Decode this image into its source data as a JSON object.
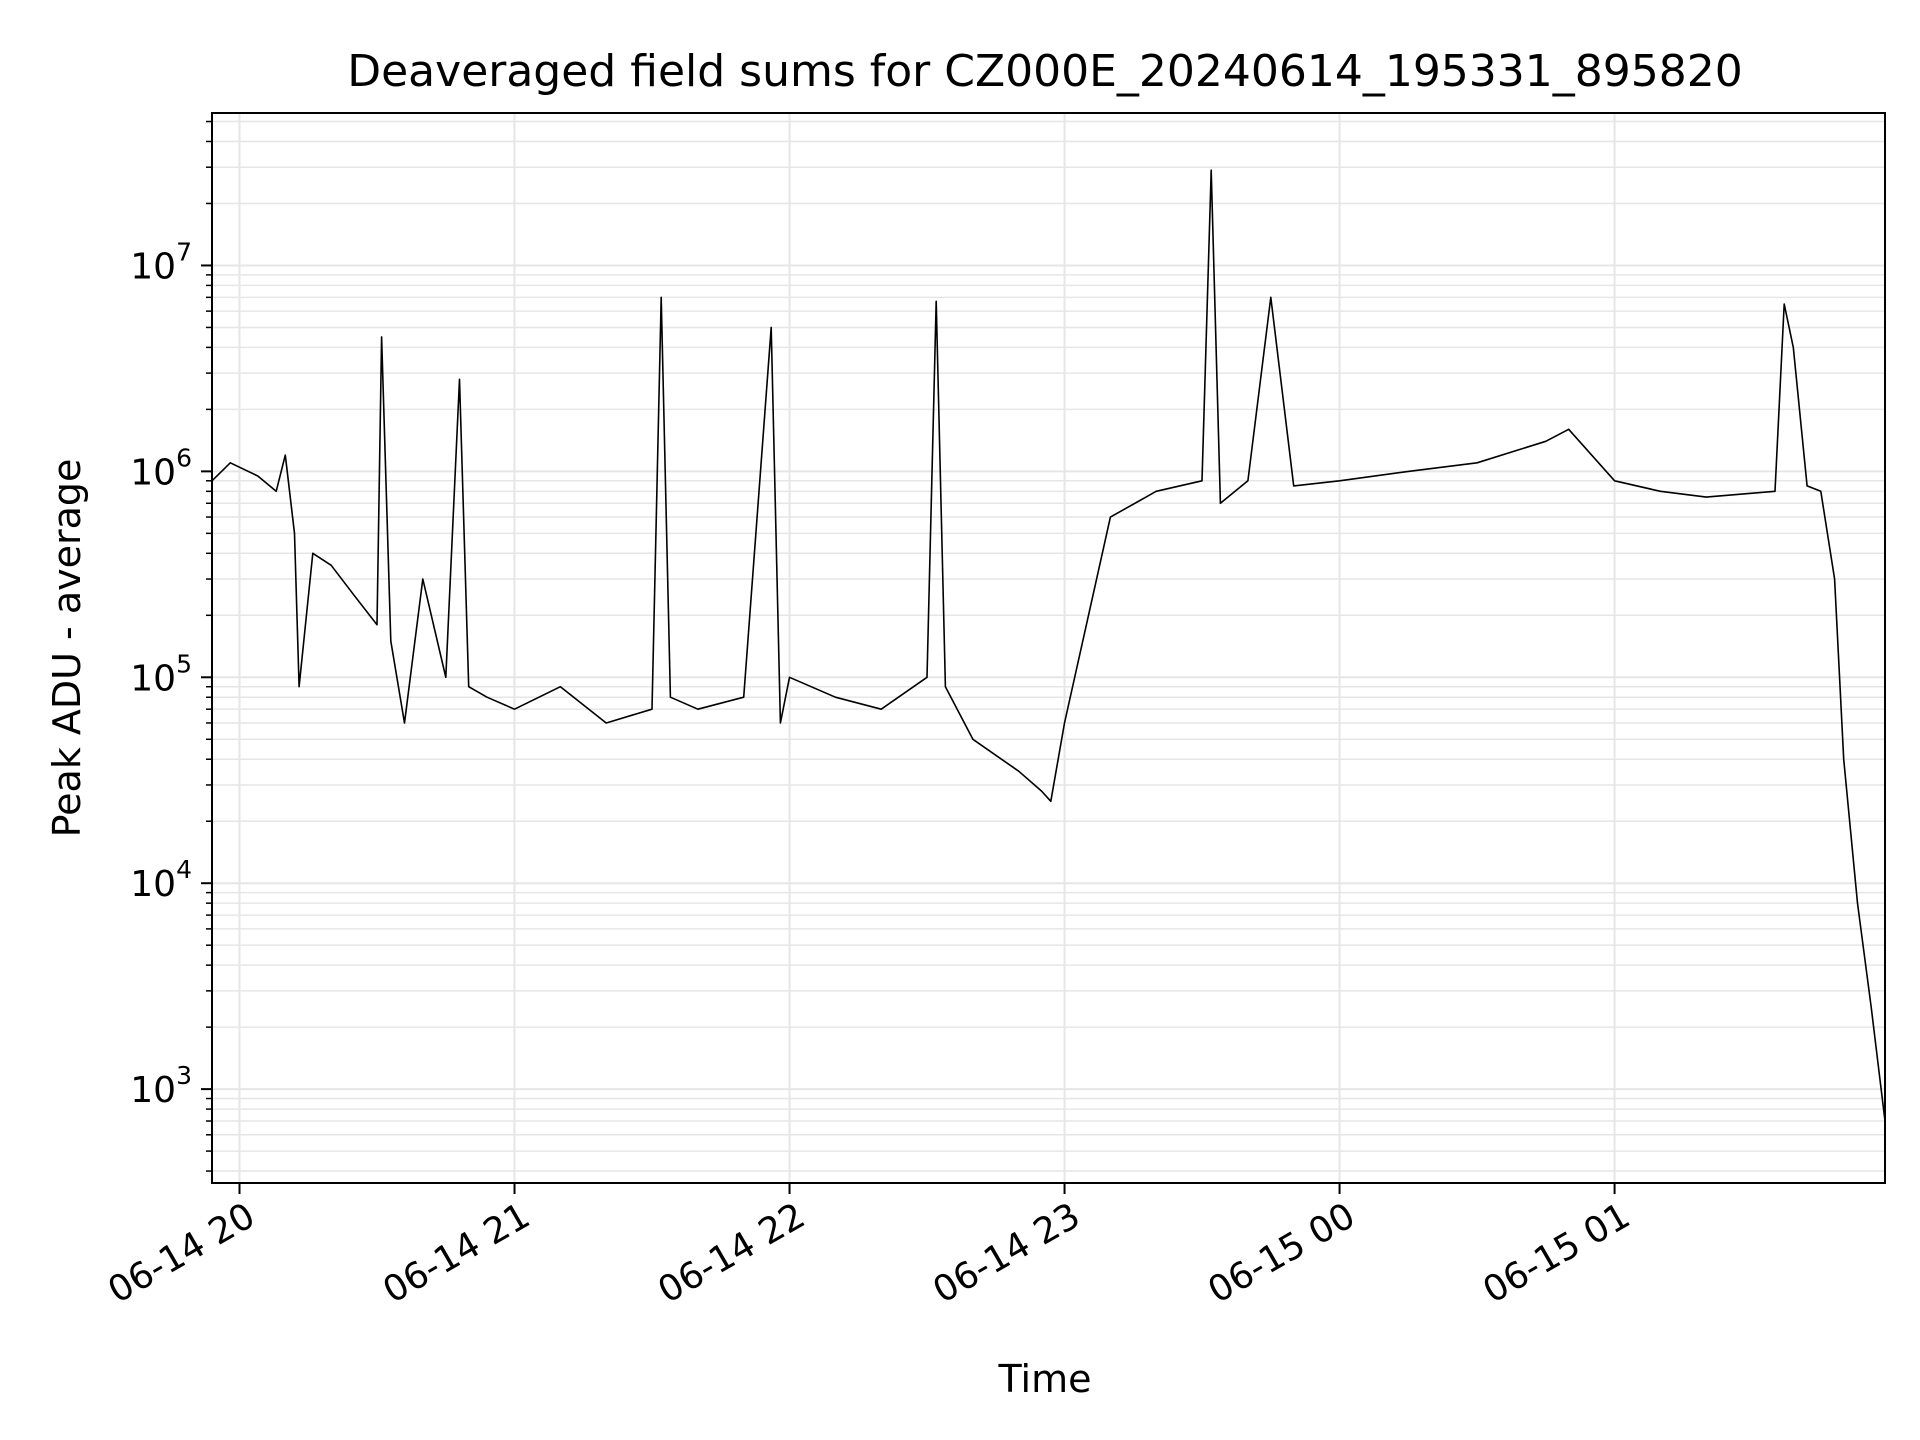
{
  "chart_data": {
    "type": "line",
    "title": "Deaveraged field sums for CZ000E_20240614_195331_895820",
    "xlabel": "Time",
    "ylabel": "Peak ADU - average",
    "yscale": "log",
    "ylim": [
      350,
      55000000
    ],
    "xlim": [
      "06-14 19:54",
      "06-15 01:59"
    ],
    "grid": true,
    "line_color": "#000000",
    "grid_color": "#e6e6e6",
    "xticks": [
      {
        "label": "06-14 20",
        "t": "06-14 20:00"
      },
      {
        "label": "06-14 21",
        "t": "06-14 21:00"
      },
      {
        "label": "06-14 22",
        "t": "06-14 22:00"
      },
      {
        "label": "06-14 23",
        "t": "06-14 23:00"
      },
      {
        "label": "06-15 00",
        "t": "06-15 00:00"
      },
      {
        "label": "06-15 01",
        "t": "06-15 01:00"
      }
    ],
    "yticks": [
      {
        "base": "10",
        "exp": "3",
        "value": 1000
      },
      {
        "base": "10",
        "exp": "4",
        "value": 10000
      },
      {
        "base": "10",
        "exp": "5",
        "value": 100000
      },
      {
        "base": "10",
        "exp": "6",
        "value": 1000000
      },
      {
        "base": "10",
        "exp": "7",
        "value": 10000000
      }
    ],
    "series": [
      {
        "x": [
          "06-14 19:54",
          "06-14 19:58",
          "06-14 20:04",
          "06-14 20:08",
          "06-14 20:10",
          "06-14 20:12",
          "06-14 20:13",
          "06-14 20:16",
          "06-14 20:20",
          "06-14 20:25",
          "06-14 20:30",
          "06-14 20:31",
          "06-14 20:33",
          "06-14 20:36",
          "06-14 20:40",
          "06-14 20:45",
          "06-14 20:48",
          "06-14 20:50",
          "06-14 20:54",
          "06-14 21:00",
          "06-14 21:10",
          "06-14 21:20",
          "06-14 21:30",
          "06-14 21:32",
          "06-14 21:34",
          "06-14 21:40",
          "06-14 21:50",
          "06-14 21:56",
          "06-14 21:58",
          "06-14 22:00",
          "06-14 22:10",
          "06-14 22:20",
          "06-14 22:30",
          "06-14 22:32",
          "06-14 22:34",
          "06-14 22:40",
          "06-14 22:50",
          "06-14 22:55",
          "06-14 22:57",
          "06-14 23:00",
          "06-14 23:10",
          "06-14 23:20",
          "06-14 23:30",
          "06-14 23:32",
          "06-14 23:34",
          "06-14 23:40",
          "06-14 23:45",
          "06-14 23:50",
          "06-15 00:00",
          "06-15 00:15",
          "06-15 00:30",
          "06-15 00:45",
          "06-15 00:50",
          "06-15 01:00",
          "06-15 01:10",
          "06-15 01:20",
          "06-15 01:35",
          "06-15 01:37",
          "06-15 01:39",
          "06-15 01:42",
          "06-15 01:45",
          "06-15 01:48",
          "06-15 01:50",
          "06-15 01:53",
          "06-15 01:56",
          "06-15 01:59"
        ],
        "y": [
          900000,
          1100000,
          950000,
          800000,
          1200000,
          500000,
          90000,
          400000,
          350000,
          250000,
          180000,
          4500000,
          150000,
          60000,
          300000,
          100000,
          2800000,
          90000,
          80000,
          70000,
          90000,
          60000,
          70000,
          7000000,
          80000,
          70000,
          80000,
          5000000,
          60000,
          100000,
          80000,
          70000,
          100000,
          6700000,
          90000,
          50000,
          35000,
          28000,
          25000,
          60000,
          600000,
          800000,
          900000,
          29000000,
          700000,
          900000,
          7000000,
          850000,
          900000,
          1000000,
          1100000,
          1400000,
          1600000,
          900000,
          800000,
          750000,
          800000,
          6500000,
          4000000,
          850000,
          800000,
          300000,
          40000,
          8000,
          2500,
          700
        ]
      }
    ]
  }
}
